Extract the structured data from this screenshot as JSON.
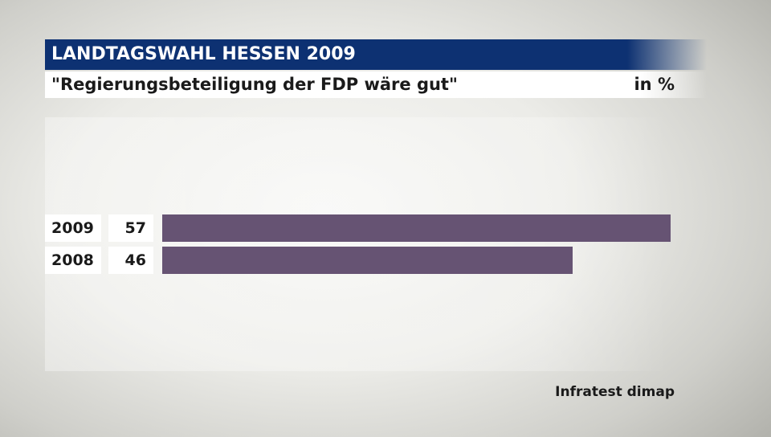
{
  "header": {
    "title": "LANDTAGSWAHL HESSEN 2009",
    "subtitle": "\"Regierungsbeteiligung der FDP wäre gut\"",
    "unit": "in %"
  },
  "source": "Infratest dimap",
  "colors": {
    "title_bar": "#0d3172",
    "bar": "#665373"
  },
  "chart_data": {
    "type": "bar",
    "orientation": "horizontal",
    "categories": [
      "2009",
      "2008"
    ],
    "values": [
      57,
      46
    ],
    "value_labels": [
      "57",
      "46"
    ],
    "title": "LANDTAGSWAHL HESSEN 2009",
    "subtitle": "\"Regierungsbeteiligung der FDP wäre gut\"",
    "unit": "in %",
    "xlim": [
      0,
      57
    ],
    "grid": false,
    "legend": "none"
  }
}
